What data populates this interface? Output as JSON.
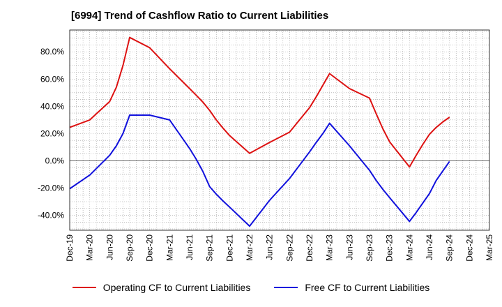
{
  "title": "[6994]  Trend of Cashflow Ratio to Current Liabilities",
  "chart_data": {
    "type": "line",
    "title": "[6994]  Trend of Cashflow Ratio to Current Liabilities",
    "xlabel": "",
    "ylabel": "",
    "x_ticks": [
      "Dec-19",
      "Mar-20",
      "Jun-20",
      "Sep-20",
      "Dec-20",
      "Mar-21",
      "Jun-21",
      "Sep-21",
      "Dec-21",
      "Mar-22",
      "Jun-22",
      "Sep-22",
      "Dec-22",
      "Mar-23",
      "Jun-23",
      "Sep-23",
      "Dec-23",
      "Mar-24",
      "Jun-24",
      "Sep-24",
      "Dec-24",
      "Mar-25"
    ],
    "y_ticks": [
      -40,
      -20,
      0,
      20,
      40,
      60,
      80
    ],
    "y_tick_labels": [
      "-40.0%",
      "-20.0%",
      "0.0%",
      "20.0%",
      "40.0%",
      "60.0%",
      "80.0%"
    ],
    "ylim": [
      -51,
      96
    ],
    "grid": true,
    "legend_position": "bottom",
    "series": [
      {
        "name": "Operating CF to Current Liabilities",
        "color": "#dd1111",
        "x": [
          "Dec-19",
          "Mar-20",
          "Jun-20",
          "Jul-20",
          "Aug-20",
          "Sep-20",
          "Dec-20",
          "Mar-21",
          "Jun-21",
          "Jul-21",
          "Aug-21",
          "Sep-21",
          "Oct-21",
          "Nov-21",
          "Dec-21",
          "Mar-22",
          "Jun-22",
          "Sep-22",
          "Dec-22",
          "Jan-23",
          "Feb-23",
          "Mar-23",
          "Jun-23",
          "Sep-23",
          "Oct-23",
          "Nov-23",
          "Dec-23",
          "Mar-24",
          "Apr-24",
          "May-24",
          "Jun-24",
          "Jul-24",
          "Aug-24",
          "Sep-24"
        ],
        "values": [
          24.5,
          30.0,
          43.5,
          54.0,
          70.0,
          90.5,
          83.0,
          67.5,
          53.0,
          48.0,
          43.0,
          37.0,
          30.0,
          24.0,
          18.5,
          5.5,
          13.5,
          21.0,
          39.0,
          47.0,
          55.5,
          64.0,
          53.0,
          46.0,
          34.5,
          23.5,
          14.0,
          -4.5,
          4.0,
          12.0,
          19.5,
          24.5,
          28.5,
          32.0
        ]
      },
      {
        "name": "Free CF to Current Liabilities",
        "color": "#1111dd",
        "x": [
          "Dec-19",
          "Mar-20",
          "Jun-20",
          "Jul-20",
          "Aug-20",
          "Sep-20",
          "Dec-20",
          "Mar-21",
          "Jun-21",
          "Jul-21",
          "Aug-21",
          "Sep-21",
          "Oct-21",
          "Nov-21",
          "Dec-21",
          "Mar-22",
          "Jun-22",
          "Sep-22",
          "Dec-22",
          "Jan-23",
          "Feb-23",
          "Mar-23",
          "Jun-23",
          "Sep-23",
          "Oct-23",
          "Nov-23",
          "Dec-23",
          "Mar-24",
          "Apr-24",
          "May-24",
          "Jun-24",
          "Jul-24",
          "Aug-24",
          "Sep-24"
        ],
        "values": [
          -20.5,
          -10.5,
          4.0,
          11.0,
          20.0,
          33.5,
          33.5,
          30.0,
          9.0,
          1.0,
          -8.0,
          -19.0,
          -24.5,
          -29.5,
          -34.0,
          -48.0,
          -29.0,
          -13.0,
          6.5,
          13.5,
          20.0,
          27.5,
          11.0,
          -7.0,
          -14.5,
          -21.0,
          -27.0,
          -44.5,
          -38.0,
          -31.0,
          -24.0,
          -14.5,
          -7.5,
          -0.5
        ]
      }
    ]
  }
}
